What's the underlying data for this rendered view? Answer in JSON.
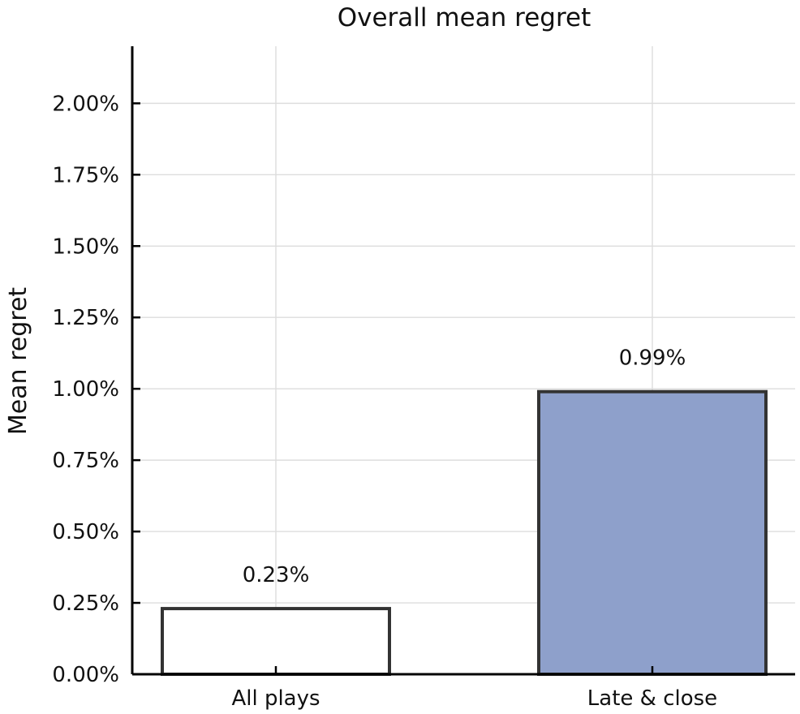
{
  "chart_data": {
    "type": "bar",
    "title": "Overall mean regret",
    "xlabel": "",
    "ylabel": "Mean regret",
    "categories": [
      "All plays",
      "Late & close"
    ],
    "values": [
      0.23,
      0.99
    ],
    "value_labels": [
      "0.23%",
      "0.99%"
    ],
    "bar_fill": [
      "#ffffff",
      "#8ea0cb"
    ],
    "bar_edge": "#333333",
    "ylim": [
      0,
      2.2
    ],
    "yticks": [
      0,
      0.25,
      0.5,
      0.75,
      1.0,
      1.25,
      1.5,
      1.75,
      2.0
    ],
    "ytick_labels": [
      "0.00%",
      "0.25%",
      "0.50%",
      "0.75%",
      "1.00%",
      "1.25%",
      "1.50%",
      "1.75%",
      "2.00%"
    ],
    "grid": true,
    "legend": false
  }
}
